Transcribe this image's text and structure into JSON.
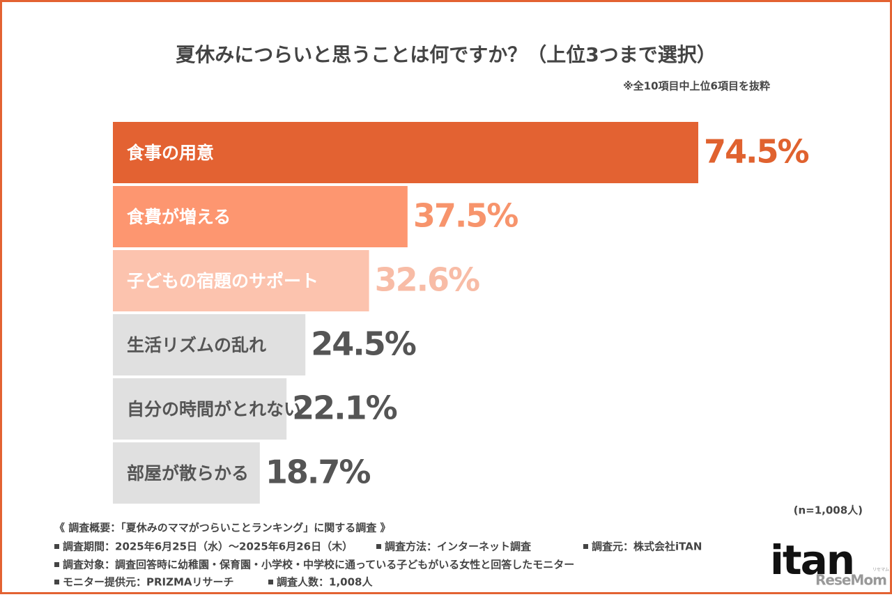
{
  "chart_data": {
    "type": "bar",
    "orientation": "horizontal",
    "title": "夏休みにつらいと思うことは何ですか？（上位3つまで選択）",
    "subtitle": "※全10項目中上位6項目を抜粋",
    "categories": [
      "食事の用意",
      "食費が増える",
      "子どもの宿題のサポート",
      "生活リズムの乱れ",
      "自分の時間がとれない",
      "部屋が散らかる"
    ],
    "values": [
      74.5,
      37.5,
      32.6,
      24.5,
      22.1,
      18.7
    ],
    "value_labels": [
      "74.5%",
      "37.5%",
      "32.6%",
      "24.5%",
      "22.1%",
      "18.7%"
    ],
    "colors": [
      "#e36232",
      "#fd9670",
      "#fcc3ae",
      "#e0e0e0",
      "#e0e0e0",
      "#e0e0e0"
    ],
    "label_colors": [
      "#e0622f",
      "#f7946c",
      "#f8bca6",
      "#555555",
      "#555555",
      "#555555"
    ],
    "category_colors": [
      "#ffffff",
      "#ffffff",
      "#ffffff",
      "#555555",
      "#555555",
      "#555555"
    ],
    "sample_size": "(n=1,008人)"
  },
  "footer": {
    "heading": "《 調査概要：「夏休みのママがつらいことランキング」に関する調査 》",
    "rows": [
      [
        "調査期間：2025年6月25日（水）～2025年6月26日（木）",
        "調査方法：インターネット調査",
        "調査元：株式会社iTAN"
      ],
      [
        "調査対象：調査回答時に幼稚園・保育園・小学校・中学校に通っている子どもがいる女性と回答したモニター"
      ],
      [
        "モニター提供元：PRIZMAリサーチ",
        "調査人数：1,008人"
      ]
    ]
  },
  "logos": {
    "brand": "itan",
    "partner": "ReseMom",
    "partner_kana": "リセマム"
  }
}
